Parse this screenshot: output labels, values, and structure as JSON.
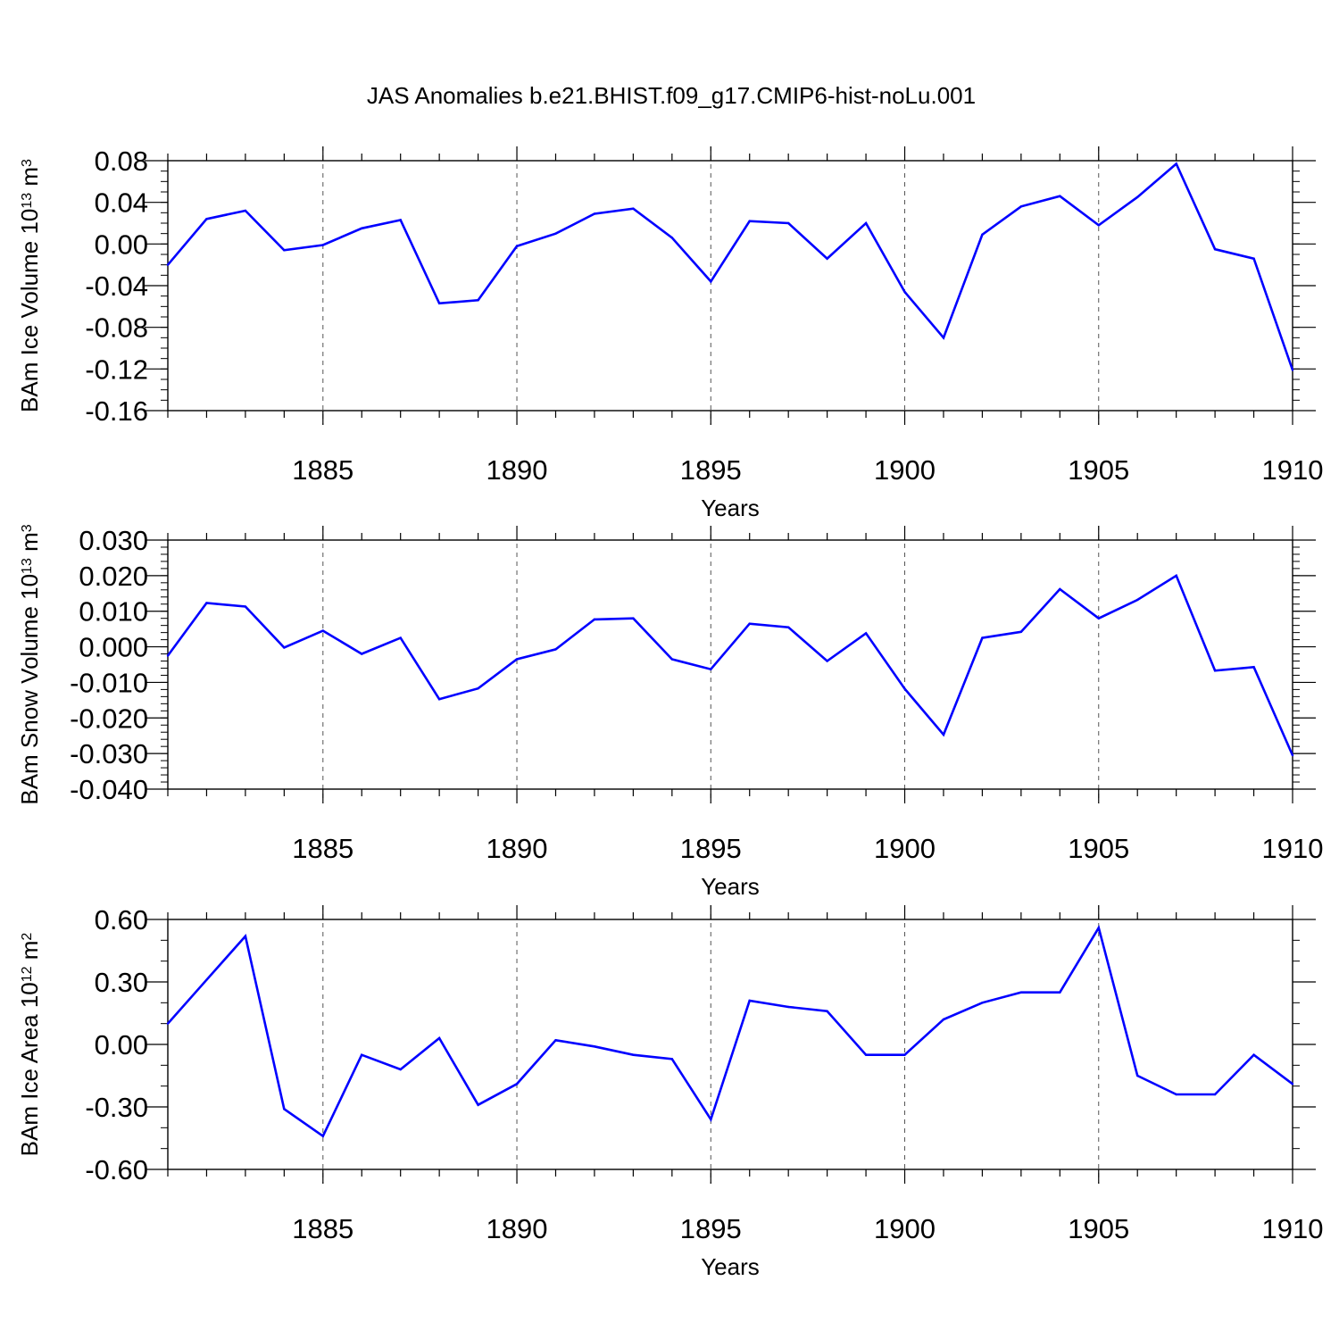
{
  "title": "JAS Anomalies b.e21.BHIST.f09_g17.CMIP6-hist-noLu.001",
  "colors": {
    "line": "#0000ff",
    "axis": "#000000",
    "grid": "#555555"
  },
  "chart_data": [
    {
      "type": "line",
      "ylabel": {
        "text": "BAm Ice Volume 10",
        "exp": "13",
        "unit": " m",
        "unit_exp": "3"
      },
      "xlabel": "Years",
      "xlim": [
        1881,
        1910
      ],
      "ylim": [
        -0.16,
        0.08
      ],
      "yticks": [
        "0.08",
        "0.04",
        "0.00",
        "-0.04",
        "-0.08",
        "-0.12",
        "-0.16"
      ],
      "ytick_values": [
        0.08,
        0.04,
        0.0,
        -0.04,
        -0.08,
        -0.12,
        -0.16
      ],
      "yminor": 0.01,
      "xticks": [
        "1885",
        "1890",
        "1895",
        "1900",
        "1905",
        "1910"
      ],
      "xtick_values": [
        1885,
        1890,
        1895,
        1900,
        1905,
        1910
      ],
      "grid": "dashed vertical at major x ticks",
      "x": [
        1881,
        1882,
        1883,
        1884,
        1885,
        1886,
        1887,
        1888,
        1889,
        1890,
        1891,
        1892,
        1893,
        1894,
        1895,
        1896,
        1897,
        1898,
        1899,
        1900,
        1901,
        1902,
        1903,
        1904,
        1905,
        1906,
        1907,
        1908,
        1909,
        1910
      ],
      "values": [
        -0.02,
        0.024,
        0.032,
        -0.006,
        -0.001,
        0.015,
        0.023,
        -0.057,
        -0.054,
        -0.002,
        0.01,
        0.029,
        0.034,
        0.006,
        -0.036,
        0.022,
        0.02,
        -0.014,
        0.02,
        -0.046,
        -0.09,
        0.009,
        0.036,
        0.046,
        0.018,
        0.045,
        0.077,
        -0.005,
        -0.014,
        -0.121
      ]
    },
    {
      "type": "line",
      "ylabel": {
        "text": "BAm Snow Volume 10",
        "exp": "13",
        "unit": " m",
        "unit_exp": "3"
      },
      "xlabel": "Years",
      "xlim": [
        1881,
        1910
      ],
      "ylim": [
        -0.04,
        0.03
      ],
      "yticks": [
        "0.030",
        "0.020",
        "0.010",
        "0.000",
        "-0.010",
        "-0.020",
        "-0.030",
        "-0.040"
      ],
      "ytick_values": [
        0.03,
        0.02,
        0.01,
        0.0,
        -0.01,
        -0.02,
        -0.03,
        -0.04
      ],
      "yminor": 0.002,
      "xticks": [
        "1885",
        "1890",
        "1895",
        "1900",
        "1905",
        "1910"
      ],
      "xtick_values": [
        1885,
        1890,
        1895,
        1900,
        1905,
        1910
      ],
      "grid": "dashed vertical at major x ticks",
      "x": [
        1881,
        1882,
        1883,
        1884,
        1885,
        1886,
        1887,
        1888,
        1889,
        1890,
        1891,
        1892,
        1893,
        1894,
        1895,
        1896,
        1897,
        1898,
        1899,
        1900,
        1901,
        1902,
        1903,
        1904,
        1905,
        1906,
        1907,
        1908,
        1909,
        1910
      ],
      "values": [
        -0.0025,
        0.0123,
        0.0113,
        -0.0002,
        0.0045,
        -0.002,
        0.0025,
        -0.0147,
        -0.0117,
        -0.0035,
        -0.0007,
        0.0077,
        0.008,
        -0.0035,
        -0.0063,
        0.0065,
        0.0055,
        -0.004,
        0.0038,
        -0.0118,
        -0.0247,
        0.0025,
        0.0042,
        0.0162,
        0.008,
        0.0132,
        0.02,
        -0.0067,
        -0.0057,
        -0.0305
      ]
    },
    {
      "type": "line",
      "ylabel": {
        "text": "BAm Ice Area 10",
        "exp": "12",
        "unit": " m",
        "unit_exp": "2"
      },
      "xlabel": "Years",
      "xlim": [
        1881,
        1910
      ],
      "ylim": [
        -0.6,
        0.6
      ],
      "yticks": [
        "0.60",
        "0.30",
        "0.00",
        "-0.30",
        "-0.60"
      ],
      "ytick_values": [
        0.6,
        0.3,
        0.0,
        -0.3,
        -0.6
      ],
      "yminor": 0.1,
      "xticks": [
        "1885",
        "1890",
        "1895",
        "1900",
        "1905",
        "1910"
      ],
      "xtick_values": [
        1885,
        1890,
        1895,
        1900,
        1905,
        1910
      ],
      "grid": "dashed vertical at major x ticks",
      "x": [
        1881,
        1882,
        1883,
        1884,
        1885,
        1886,
        1887,
        1888,
        1889,
        1890,
        1891,
        1892,
        1893,
        1894,
        1895,
        1896,
        1897,
        1898,
        1899,
        1900,
        1901,
        1902,
        1903,
        1904,
        1905,
        1906,
        1907,
        1908,
        1909,
        1910
      ],
      "values": [
        0.1,
        0.31,
        0.52,
        -0.31,
        -0.44,
        -0.05,
        -0.12,
        0.03,
        -0.29,
        -0.19,
        0.02,
        -0.01,
        -0.05,
        -0.07,
        -0.36,
        0.21,
        0.18,
        0.16,
        -0.05,
        -0.05,
        0.12,
        0.2,
        0.25,
        0.25,
        0.56,
        -0.15,
        -0.24,
        -0.24,
        -0.05,
        -0.19
      ]
    }
  ]
}
